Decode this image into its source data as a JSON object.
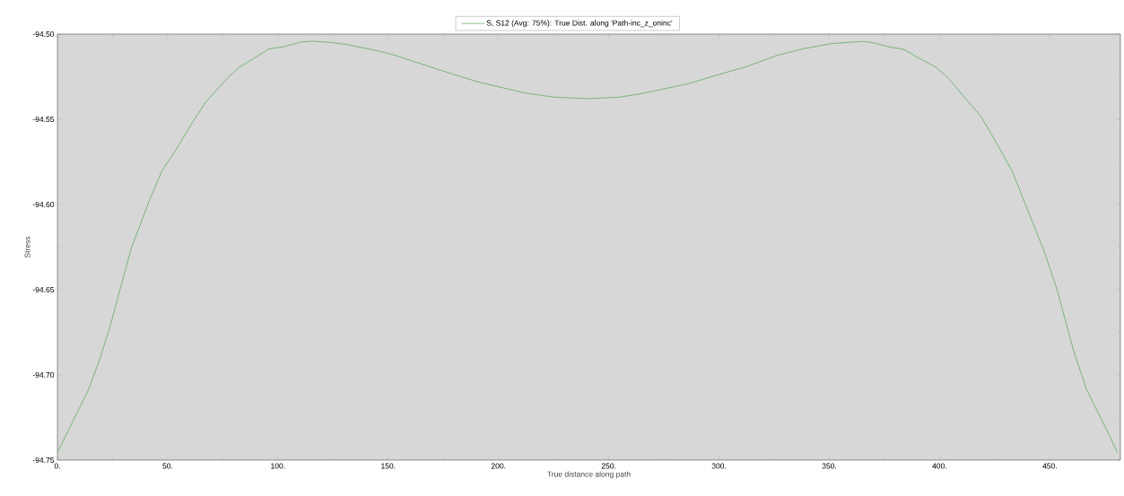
{
  "chart_data": {
    "type": "line",
    "xlabel": "True distance along path",
    "ylabel": "Stress",
    "xlim": [
      0,
      482
    ],
    "ylim": [
      -94.75,
      -94.5
    ],
    "xticks": [
      {
        "value": 0,
        "label": "0."
      },
      {
        "value": 50,
        "label": "50."
      },
      {
        "value": 100,
        "label": "100."
      },
      {
        "value": 150,
        "label": "150."
      },
      {
        "value": 200,
        "label": "200."
      },
      {
        "value": 250,
        "label": "250."
      },
      {
        "value": 300,
        "label": "300."
      },
      {
        "value": 350,
        "label": "350."
      },
      {
        "value": 400,
        "label": "400."
      },
      {
        "value": 450,
        "label": "450."
      }
    ],
    "yticks": [
      {
        "value": -94.75,
        "label": "-94.75"
      },
      {
        "value": -94.7,
        "label": "-94.70"
      },
      {
        "value": -94.65,
        "label": "-94.65"
      },
      {
        "value": -94.6,
        "label": "-94.60"
      },
      {
        "value": -94.55,
        "label": "-94.55"
      },
      {
        "value": -94.5,
        "label": "-94.50"
      }
    ],
    "legend": "top",
    "grid": false,
    "series": [
      {
        "name": "S, S12 (Avg: 75%): True Dist. along 'Path-inc_z_oninc'",
        "color": "#3c9c3c",
        "x": [
          0,
          14,
          19.4,
          23.9,
          33.4,
          41.3,
          47.5,
          54.2,
          61.4,
          67.2,
          77.3,
          83,
          90.2,
          96,
          103.2,
          110.4,
          115.4,
          124.7,
          130.5,
          144.9,
          153,
          174.8,
          191.1,
          211.5,
          225.1,
          240,
          255,
          265.8,
          286.2,
          299.8,
          312,
          326.4,
          337.9,
          350.9,
          365.3,
          369.6,
          376.8,
          384,
          389.7,
          398.4,
          404.1,
          412.8,
          418.5,
          425.7,
          432.9,
          441.5,
          447.3,
          453.1,
          460.9,
          466.7,
          474.6,
          480.7
        ],
        "values": [
          -94.7455,
          -94.709,
          -94.69,
          -94.6715,
          -94.626,
          -94.599,
          -94.58,
          -94.567,
          -94.5515,
          -94.54,
          -94.5255,
          -94.519,
          -94.5134,
          -94.5087,
          -94.5073,
          -94.5047,
          -94.5041,
          -94.505,
          -94.506,
          -94.5097,
          -94.5124,
          -94.5217,
          -94.5282,
          -94.5344,
          -94.537,
          -94.5379,
          -94.537,
          -94.5347,
          -94.5291,
          -94.5238,
          -94.5193,
          -94.5125,
          -94.5087,
          -94.5056,
          -94.5043,
          -94.505,
          -94.5074,
          -94.5091,
          -94.5134,
          -94.5195,
          -94.526,
          -94.5394,
          -94.5478,
          -94.5636,
          -94.5804,
          -94.6083,
          -94.6269,
          -94.6492,
          -94.6864,
          -94.7087,
          -94.7292,
          -94.7455
        ]
      }
    ]
  }
}
